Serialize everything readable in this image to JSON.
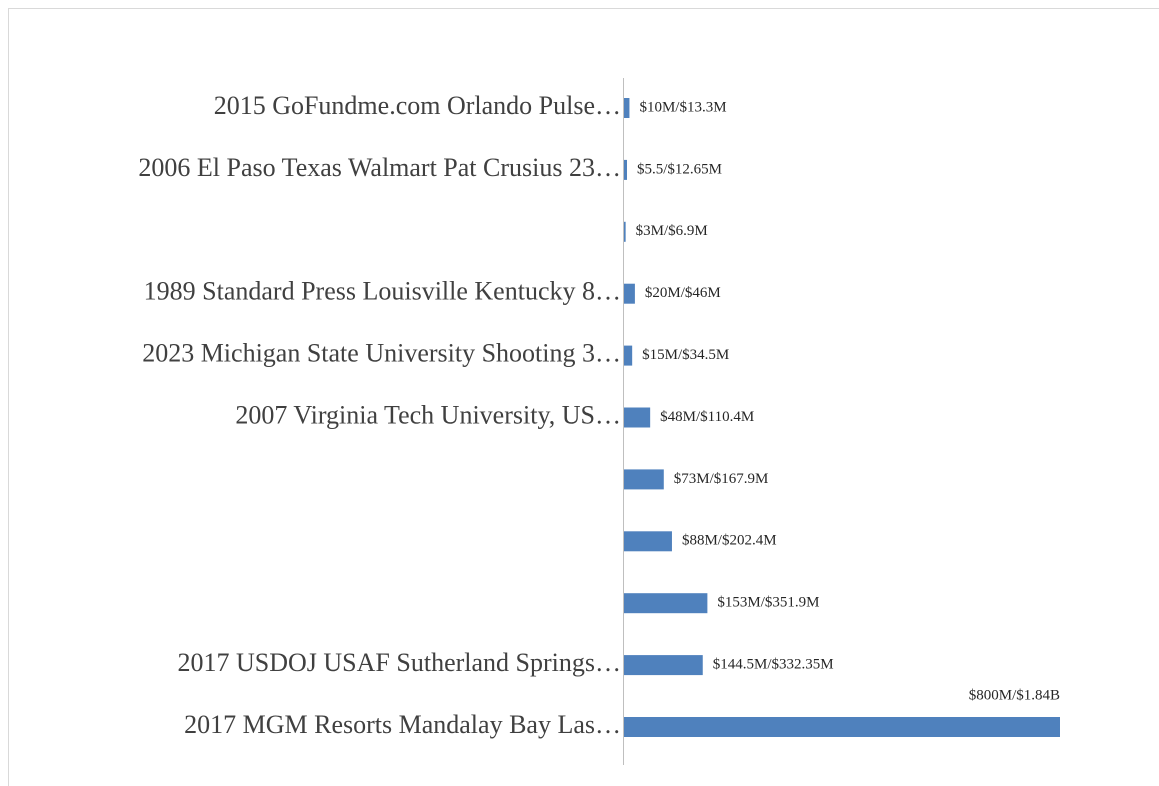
{
  "chart_data": {
    "type": "bar",
    "orientation": "horizontal",
    "categories": [
      "2015 GoFundme.com Orlando Pulse…",
      "2006 El Paso Texas Walmart Pat Crusius 23…",
      null,
      "1989 Standard Press Louisville Kentucky 8…",
      "2023 Michigan State University Shooting 3…",
      "2007 Virginia Tech University, US…",
      null,
      null,
      null,
      "2017 USDOJ USAF Sutherland Springs…",
      "2017 MGM Resorts Mandalay Bay Las…"
    ],
    "values": [
      10,
      5.5,
      3,
      20,
      15,
      48,
      73,
      88,
      153,
      144.5,
      800
    ],
    "value_labels": [
      "$10M/$13.3M",
      "$5.5/$12.65M",
      "$3M/$6.9M",
      "$20M/$46M",
      "$15M/$34.5M",
      "$48M/$110.4M",
      "$73M/$167.9M",
      "$88M/$202.4M",
      "$153M/$351.9M",
      "$144.5M/$332.35M",
      "$800M/$1.84B"
    ],
    "color": "#4f81bd"
  }
}
